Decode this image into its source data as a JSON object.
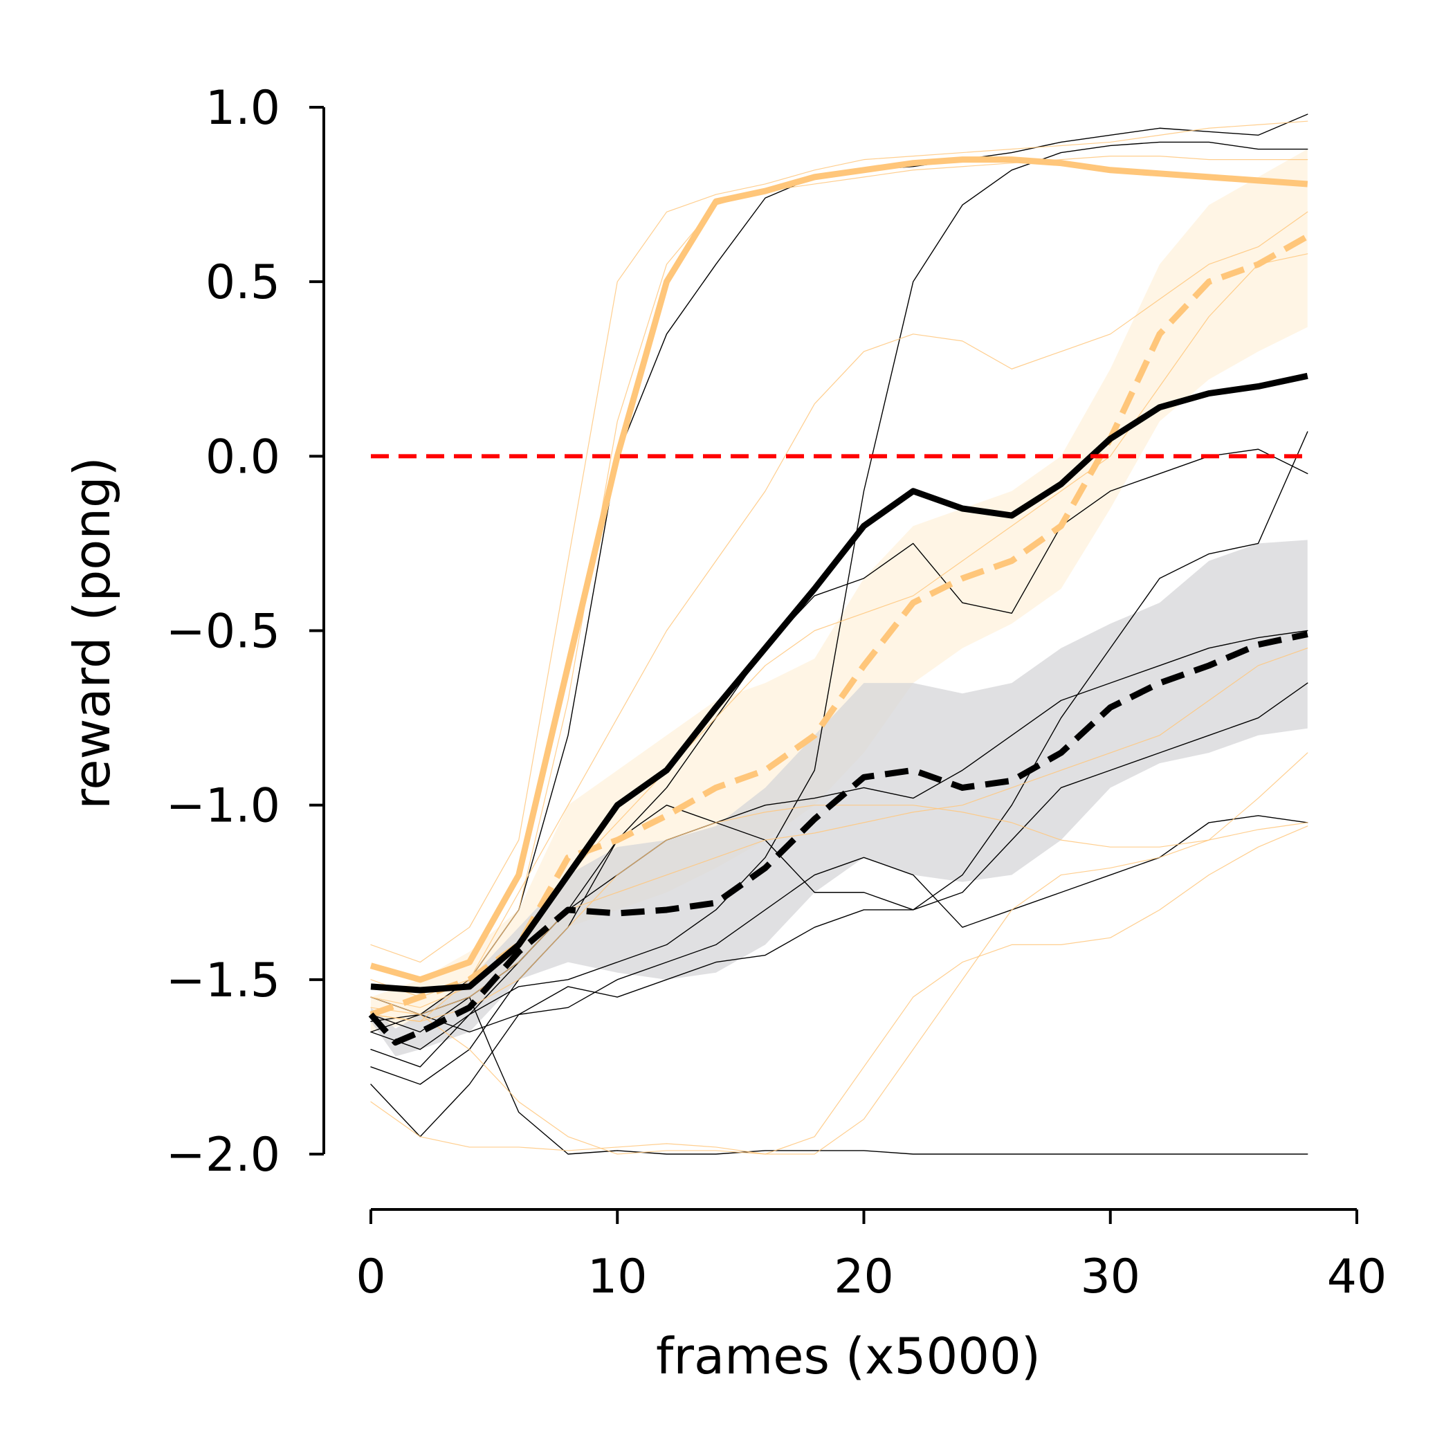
{
  "chart_data": {
    "type": "line",
    "title": "",
    "xlabel": "frames (x5000)",
    "ylabel": "reward (pong)",
    "xlim": [
      0,
      40
    ],
    "ylim": [
      -2.0,
      1.0
    ],
    "xticks": [
      0,
      10,
      20,
      30,
      40
    ],
    "yticks": [
      -2.0,
      -1.5,
      -1.0,
      -0.5,
      0.0,
      0.5,
      1.0
    ],
    "xtick_labels": [
      "0",
      "10",
      "20",
      "30",
      "40"
    ],
    "ytick_labels": [
      "−2.0",
      "−1.5",
      "−1.0",
      "−0.5",
      "0.0",
      "0.5",
      "1.0"
    ],
    "grid": false,
    "colors": {
      "orange": "#ffc67a",
      "black": "#000000",
      "reference": "#ff0000",
      "band_gray": "#d5d6d8",
      "band_orange": "#fff1dc"
    },
    "reference_line": {
      "y": 0.0,
      "x_range": [
        0,
        38
      ],
      "style": "dashed",
      "color": "#ff0000"
    },
    "series": [
      {
        "name": "orange-mean-solid",
        "color": "#ffc67a",
        "style": "solid",
        "width": "thick",
        "x": [
          0,
          2,
          4,
          6,
          8,
          10,
          12,
          14,
          16,
          18,
          20,
          22,
          24,
          26,
          28,
          30,
          32,
          34,
          36,
          38
        ],
        "y": [
          -1.46,
          -1.5,
          -1.45,
          -1.2,
          -0.6,
          0.0,
          0.5,
          0.73,
          0.76,
          0.8,
          0.82,
          0.84,
          0.85,
          0.85,
          0.84,
          0.82,
          0.81,
          0.8,
          0.79,
          0.78
        ]
      },
      {
        "name": "orange-mean-dashed",
        "color": "#ffc67a",
        "style": "dashed",
        "width": "thick",
        "x": [
          0,
          2,
          4,
          6,
          8,
          10,
          12,
          14,
          16,
          18,
          20,
          22,
          24,
          26,
          28,
          30,
          32,
          34,
          36,
          38
        ],
        "y": [
          -1.6,
          -1.55,
          -1.5,
          -1.4,
          -1.15,
          -1.1,
          -1.03,
          -0.95,
          -0.9,
          -0.8,
          -0.6,
          -0.42,
          -0.35,
          -0.3,
          -0.2,
          0.05,
          0.35,
          0.5,
          0.55,
          0.63
        ]
      },
      {
        "name": "black-mean-solid",
        "color": "#000000",
        "style": "solid",
        "width": "thick",
        "x": [
          0,
          2,
          4,
          6,
          8,
          10,
          12,
          14,
          16,
          18,
          20,
          22,
          24,
          26,
          28,
          30,
          32,
          34,
          36,
          38
        ],
        "y": [
          -1.52,
          -1.53,
          -1.52,
          -1.4,
          -1.2,
          -1.0,
          -0.9,
          -0.72,
          -0.55,
          -0.38,
          -0.2,
          -0.1,
          -0.15,
          -0.17,
          -0.08,
          0.05,
          0.14,
          0.18,
          0.2,
          0.23
        ]
      },
      {
        "name": "black-mean-dashed",
        "color": "#000000",
        "style": "dashed",
        "width": "thick",
        "x": [
          0,
          1,
          2,
          4,
          6,
          8,
          10,
          12,
          14,
          16,
          18,
          20,
          22,
          24,
          26,
          28,
          30,
          32,
          34,
          36,
          38
        ],
        "y": [
          -1.6,
          -1.68,
          -1.65,
          -1.58,
          -1.42,
          -1.3,
          -1.31,
          -1.3,
          -1.28,
          -1.18,
          -1.04,
          -0.92,
          -0.9,
          -0.95,
          -0.93,
          -0.85,
          -0.72,
          -0.65,
          -0.6,
          -0.54,
          -0.51
        ]
      },
      {
        "name": "black-run-1",
        "color": "#000000",
        "style": "solid",
        "width": "thin",
        "x": [
          0,
          2,
          4,
          6,
          8,
          10,
          12,
          14,
          16,
          18,
          20,
          22,
          24,
          26,
          28,
          30,
          32,
          34,
          36,
          38
        ],
        "y": [
          -1.62,
          -1.6,
          -1.5,
          -1.3,
          -0.8,
          0.0,
          0.35,
          0.55,
          0.74,
          0.8,
          0.82,
          0.83,
          0.85,
          0.87,
          0.9,
          0.92,
          0.94,
          0.93,
          0.92,
          0.98
        ]
      },
      {
        "name": "black-run-2",
        "color": "#000000",
        "style": "solid",
        "width": "thin",
        "x": [
          0,
          2,
          4,
          6,
          8,
          10,
          12,
          14,
          16,
          18,
          20,
          22,
          24,
          26,
          28,
          30,
          32,
          34,
          36,
          38
        ],
        "y": [
          -1.7,
          -1.75,
          -1.6,
          -1.52,
          -1.5,
          -1.45,
          -1.4,
          -1.3,
          -1.15,
          -0.9,
          -0.1,
          0.5,
          0.72,
          0.82,
          0.87,
          0.89,
          0.9,
          0.9,
          0.88,
          0.88
        ]
      },
      {
        "name": "black-run-3",
        "color": "#000000",
        "style": "solid",
        "width": "thin",
        "x": [
          0,
          2,
          4,
          6,
          8,
          10,
          12,
          14,
          16,
          18,
          20,
          22,
          24,
          26,
          28,
          30,
          32,
          34,
          36,
          38
        ],
        "y": [
          -1.65,
          -1.6,
          -1.55,
          -1.45,
          -1.3,
          -1.1,
          -0.95,
          -0.75,
          -0.55,
          -0.4,
          -0.35,
          -0.25,
          -0.42,
          -0.45,
          -0.2,
          -0.1,
          -0.05,
          0.0,
          0.02,
          -0.05
        ]
      },
      {
        "name": "black-run-4",
        "color": "#000000",
        "style": "solid",
        "width": "thin",
        "x": [
          0,
          2,
          4,
          6,
          8,
          10,
          12,
          14,
          16,
          18,
          20,
          22,
          24,
          26,
          28,
          30,
          32,
          34,
          36,
          38
        ],
        "y": [
          -1.75,
          -1.8,
          -1.7,
          -1.5,
          -1.35,
          -1.1,
          -1.0,
          -1.05,
          -1.1,
          -1.25,
          -1.25,
          -1.3,
          -1.2,
          -1.0,
          -0.75,
          -0.55,
          -0.35,
          -0.28,
          -0.25,
          0.07
        ]
      },
      {
        "name": "black-run-5",
        "color": "#000000",
        "style": "solid",
        "width": "thin",
        "x": [
          0,
          2,
          4,
          6,
          8,
          10,
          12,
          14,
          16,
          18,
          20,
          22,
          24,
          26,
          28,
          30,
          32,
          34,
          36,
          38
        ],
        "y": [
          -1.8,
          -1.95,
          -1.8,
          -1.6,
          -1.52,
          -1.55,
          -1.5,
          -1.45,
          -1.43,
          -1.35,
          -1.3,
          -1.3,
          -1.25,
          -1.1,
          -0.95,
          -0.9,
          -0.85,
          -0.8,
          -0.75,
          -0.65
        ]
      },
      {
        "name": "black-run-6",
        "color": "#000000",
        "style": "solid",
        "width": "thin",
        "x": [
          0,
          2,
          4,
          5,
          6,
          8,
          10,
          12,
          14,
          16,
          18,
          20,
          22,
          24,
          26,
          28,
          30,
          32,
          34,
          36,
          38
        ],
        "y": [
          -1.6,
          -1.65,
          -1.55,
          -1.72,
          -1.88,
          -2.0,
          -1.99,
          -2.0,
          -2.0,
          -1.99,
          -1.99,
          -1.99,
          -2.0,
          -2.0,
          -2.0,
          -2.0,
          -2.0,
          -2.0,
          -2.0,
          -2.0,
          -2.0
        ]
      },
      {
        "name": "black-run-7",
        "color": "#000000",
        "style": "solid",
        "width": "thin",
        "x": [
          0,
          2,
          4,
          6,
          8,
          10,
          12,
          14,
          16,
          18,
          20,
          22,
          24,
          26,
          28,
          30,
          32,
          34,
          36,
          38
        ],
        "y": [
          -1.55,
          -1.6,
          -1.65,
          -1.6,
          -1.58,
          -1.5,
          -1.45,
          -1.4,
          -1.3,
          -1.2,
          -1.15,
          -1.2,
          -1.35,
          -1.3,
          -1.25,
          -1.2,
          -1.15,
          -1.05,
          -1.03,
          -1.05
        ]
      },
      {
        "name": "black-run-8",
        "color": "#000000",
        "style": "solid",
        "width": "thin",
        "x": [
          0,
          2,
          4,
          6,
          8,
          10,
          12,
          14,
          16,
          18,
          20,
          22,
          24,
          26,
          28,
          30,
          32,
          34,
          36,
          38
        ],
        "y": [
          -1.65,
          -1.7,
          -1.6,
          -1.45,
          -1.3,
          -1.2,
          -1.1,
          -1.05,
          -1.0,
          -0.98,
          -0.95,
          -0.98,
          -0.9,
          -0.8,
          -0.7,
          -0.65,
          -0.6,
          -0.55,
          -0.52,
          -0.5
        ]
      },
      {
        "name": "orange-run-1",
        "color": "#ffc67a",
        "style": "solid",
        "width": "thin",
        "x": [
          0,
          2,
          4,
          6,
          8,
          10,
          12,
          14,
          16,
          18,
          20,
          22,
          24,
          26,
          28,
          30,
          32,
          34,
          36,
          38
        ],
        "y": [
          -1.4,
          -1.45,
          -1.35,
          -1.1,
          -0.3,
          0.5,
          0.7,
          0.75,
          0.78,
          0.82,
          0.85,
          0.86,
          0.87,
          0.88,
          0.89,
          0.9,
          0.92,
          0.94,
          0.95,
          0.96
        ]
      },
      {
        "name": "orange-run-2",
        "color": "#ffc67a",
        "style": "solid",
        "width": "thin",
        "x": [
          0,
          2,
          4,
          6,
          8,
          10,
          12,
          14,
          16,
          18,
          20,
          22,
          24,
          26,
          28,
          30,
          32,
          34,
          36,
          38
        ],
        "y": [
          -1.5,
          -1.55,
          -1.5,
          -1.3,
          -0.7,
          0.1,
          0.55,
          0.72,
          0.76,
          0.78,
          0.8,
          0.82,
          0.83,
          0.84,
          0.85,
          0.86,
          0.86,
          0.85,
          0.85,
          0.85
        ]
      },
      {
        "name": "orange-run-3",
        "color": "#ffc67a",
        "style": "solid",
        "width": "thin",
        "x": [
          0,
          2,
          4,
          6,
          8,
          10,
          12,
          14,
          16,
          18,
          20,
          22,
          24,
          26,
          28,
          30,
          32,
          34,
          36,
          38
        ],
        "y": [
          -1.6,
          -1.62,
          -1.5,
          -1.25,
          -1.0,
          -0.75,
          -0.5,
          -0.3,
          -0.1,
          0.15,
          0.3,
          0.35,
          0.33,
          0.25,
          0.3,
          0.35,
          0.45,
          0.55,
          0.6,
          0.7
        ]
      },
      {
        "name": "orange-run-4",
        "color": "#ffc67a",
        "style": "solid",
        "width": "thin",
        "x": [
          0,
          2,
          4,
          6,
          8,
          10,
          12,
          14,
          16,
          18,
          20,
          22,
          24,
          26,
          28,
          30,
          32,
          34,
          36,
          38
        ],
        "y": [
          -1.55,
          -1.58,
          -1.52,
          -1.4,
          -1.2,
          -1.05,
          -0.9,
          -0.75,
          -0.6,
          -0.5,
          -0.45,
          -0.4,
          -0.3,
          -0.2,
          -0.1,
          0.0,
          0.2,
          0.4,
          0.55,
          0.58
        ]
      },
      {
        "name": "orange-run-5",
        "color": "#ffc67a",
        "style": "solid",
        "width": "thin",
        "x": [
          0,
          2,
          4,
          6,
          8,
          10,
          12,
          14,
          16,
          18,
          20,
          22,
          24,
          26,
          28,
          30,
          32,
          34,
          36,
          38
        ],
        "y": [
          -1.85,
          -1.95,
          -1.98,
          -1.98,
          -1.99,
          -1.98,
          -1.97,
          -1.98,
          -2.0,
          -1.95,
          -1.75,
          -1.55,
          -1.45,
          -1.4,
          -1.4,
          -1.38,
          -1.3,
          -1.2,
          -1.12,
          -1.06
        ]
      },
      {
        "name": "orange-run-6",
        "color": "#ffc67a",
        "style": "solid",
        "width": "thin",
        "x": [
          0,
          2,
          4,
          6,
          8,
          10,
          12,
          14,
          16,
          18,
          20,
          22,
          24,
          26,
          28,
          30,
          32,
          34,
          36,
          38
        ],
        "y": [
          -1.55,
          -1.6,
          -1.7,
          -1.85,
          -1.95,
          -2.0,
          -1.99,
          -1.99,
          -2.0,
          -2.0,
          -1.9,
          -1.7,
          -1.5,
          -1.3,
          -1.2,
          -1.18,
          -1.15,
          -1.1,
          -1.07,
          -1.05
        ]
      },
      {
        "name": "orange-run-7",
        "color": "#ffc67a",
        "style": "solid",
        "width": "thin",
        "x": [
          0,
          2,
          4,
          6,
          8,
          10,
          12,
          14,
          16,
          18,
          20,
          22,
          24,
          26,
          28,
          30,
          32,
          34,
          36,
          38
        ],
        "y": [
          -1.6,
          -1.62,
          -1.58,
          -1.5,
          -1.35,
          -1.2,
          -1.1,
          -1.05,
          -1.02,
          -1.0,
          -1.0,
          -1.0,
          -1.02,
          -1.05,
          -1.1,
          -1.12,
          -1.12,
          -1.1,
          -0.98,
          -0.85
        ]
      },
      {
        "name": "orange-run-8",
        "color": "#ffc67a",
        "style": "solid",
        "width": "thin",
        "x": [
          0,
          2,
          4,
          6,
          8,
          10,
          12,
          14,
          16,
          18,
          20,
          22,
          24,
          26,
          28,
          30,
          32,
          34,
          36,
          38
        ],
        "y": [
          -1.58,
          -1.6,
          -1.55,
          -1.45,
          -1.3,
          -1.25,
          -1.2,
          -1.15,
          -1.1,
          -1.08,
          -1.05,
          -1.02,
          -1.0,
          -0.95,
          -0.9,
          -0.85,
          -0.8,
          -0.7,
          -0.6,
          -0.55
        ]
      }
    ],
    "bands": [
      {
        "name": "orange-confidence-band",
        "color": "#fff1dc",
        "x": [
          0,
          2,
          4,
          6,
          8,
          10,
          12,
          14,
          16,
          18,
          20,
          22,
          24,
          26,
          28,
          30,
          32,
          34,
          36,
          38
        ],
        "lower": [
          -1.65,
          -1.62,
          -1.58,
          -1.5,
          -1.35,
          -1.3,
          -1.25,
          -1.18,
          -1.1,
          -1.0,
          -0.85,
          -0.65,
          -0.55,
          -0.48,
          -0.38,
          -0.15,
          0.1,
          0.22,
          0.3,
          0.37
        ],
        "upper": [
          -1.55,
          -1.5,
          -1.42,
          -1.3,
          -1.0,
          -0.9,
          -0.8,
          -0.7,
          -0.65,
          -0.58,
          -0.35,
          -0.2,
          -0.15,
          -0.1,
          0.0,
          0.25,
          0.55,
          0.72,
          0.8,
          0.88
        ]
      },
      {
        "name": "black-confidence-band",
        "color": "#d5d6d8",
        "x": [
          0,
          1,
          2,
          4,
          6,
          8,
          10,
          12,
          14,
          16,
          18,
          20,
          22,
          24,
          26,
          28,
          30,
          32,
          34,
          36,
          38
        ],
        "lower": [
          -1.62,
          -1.72,
          -1.7,
          -1.65,
          -1.5,
          -1.45,
          -1.48,
          -1.5,
          -1.48,
          -1.4,
          -1.25,
          -1.15,
          -1.2,
          -1.22,
          -1.2,
          -1.1,
          -0.95,
          -0.88,
          -0.85,
          -0.8,
          -0.78
        ],
        "upper": [
          -1.58,
          -1.64,
          -1.6,
          -1.5,
          -1.35,
          -1.2,
          -1.12,
          -1.1,
          -1.06,
          -0.95,
          -0.8,
          -0.65,
          -0.65,
          -0.68,
          -0.65,
          -0.55,
          -0.48,
          -0.42,
          -0.3,
          -0.25,
          -0.24
        ]
      }
    ]
  }
}
